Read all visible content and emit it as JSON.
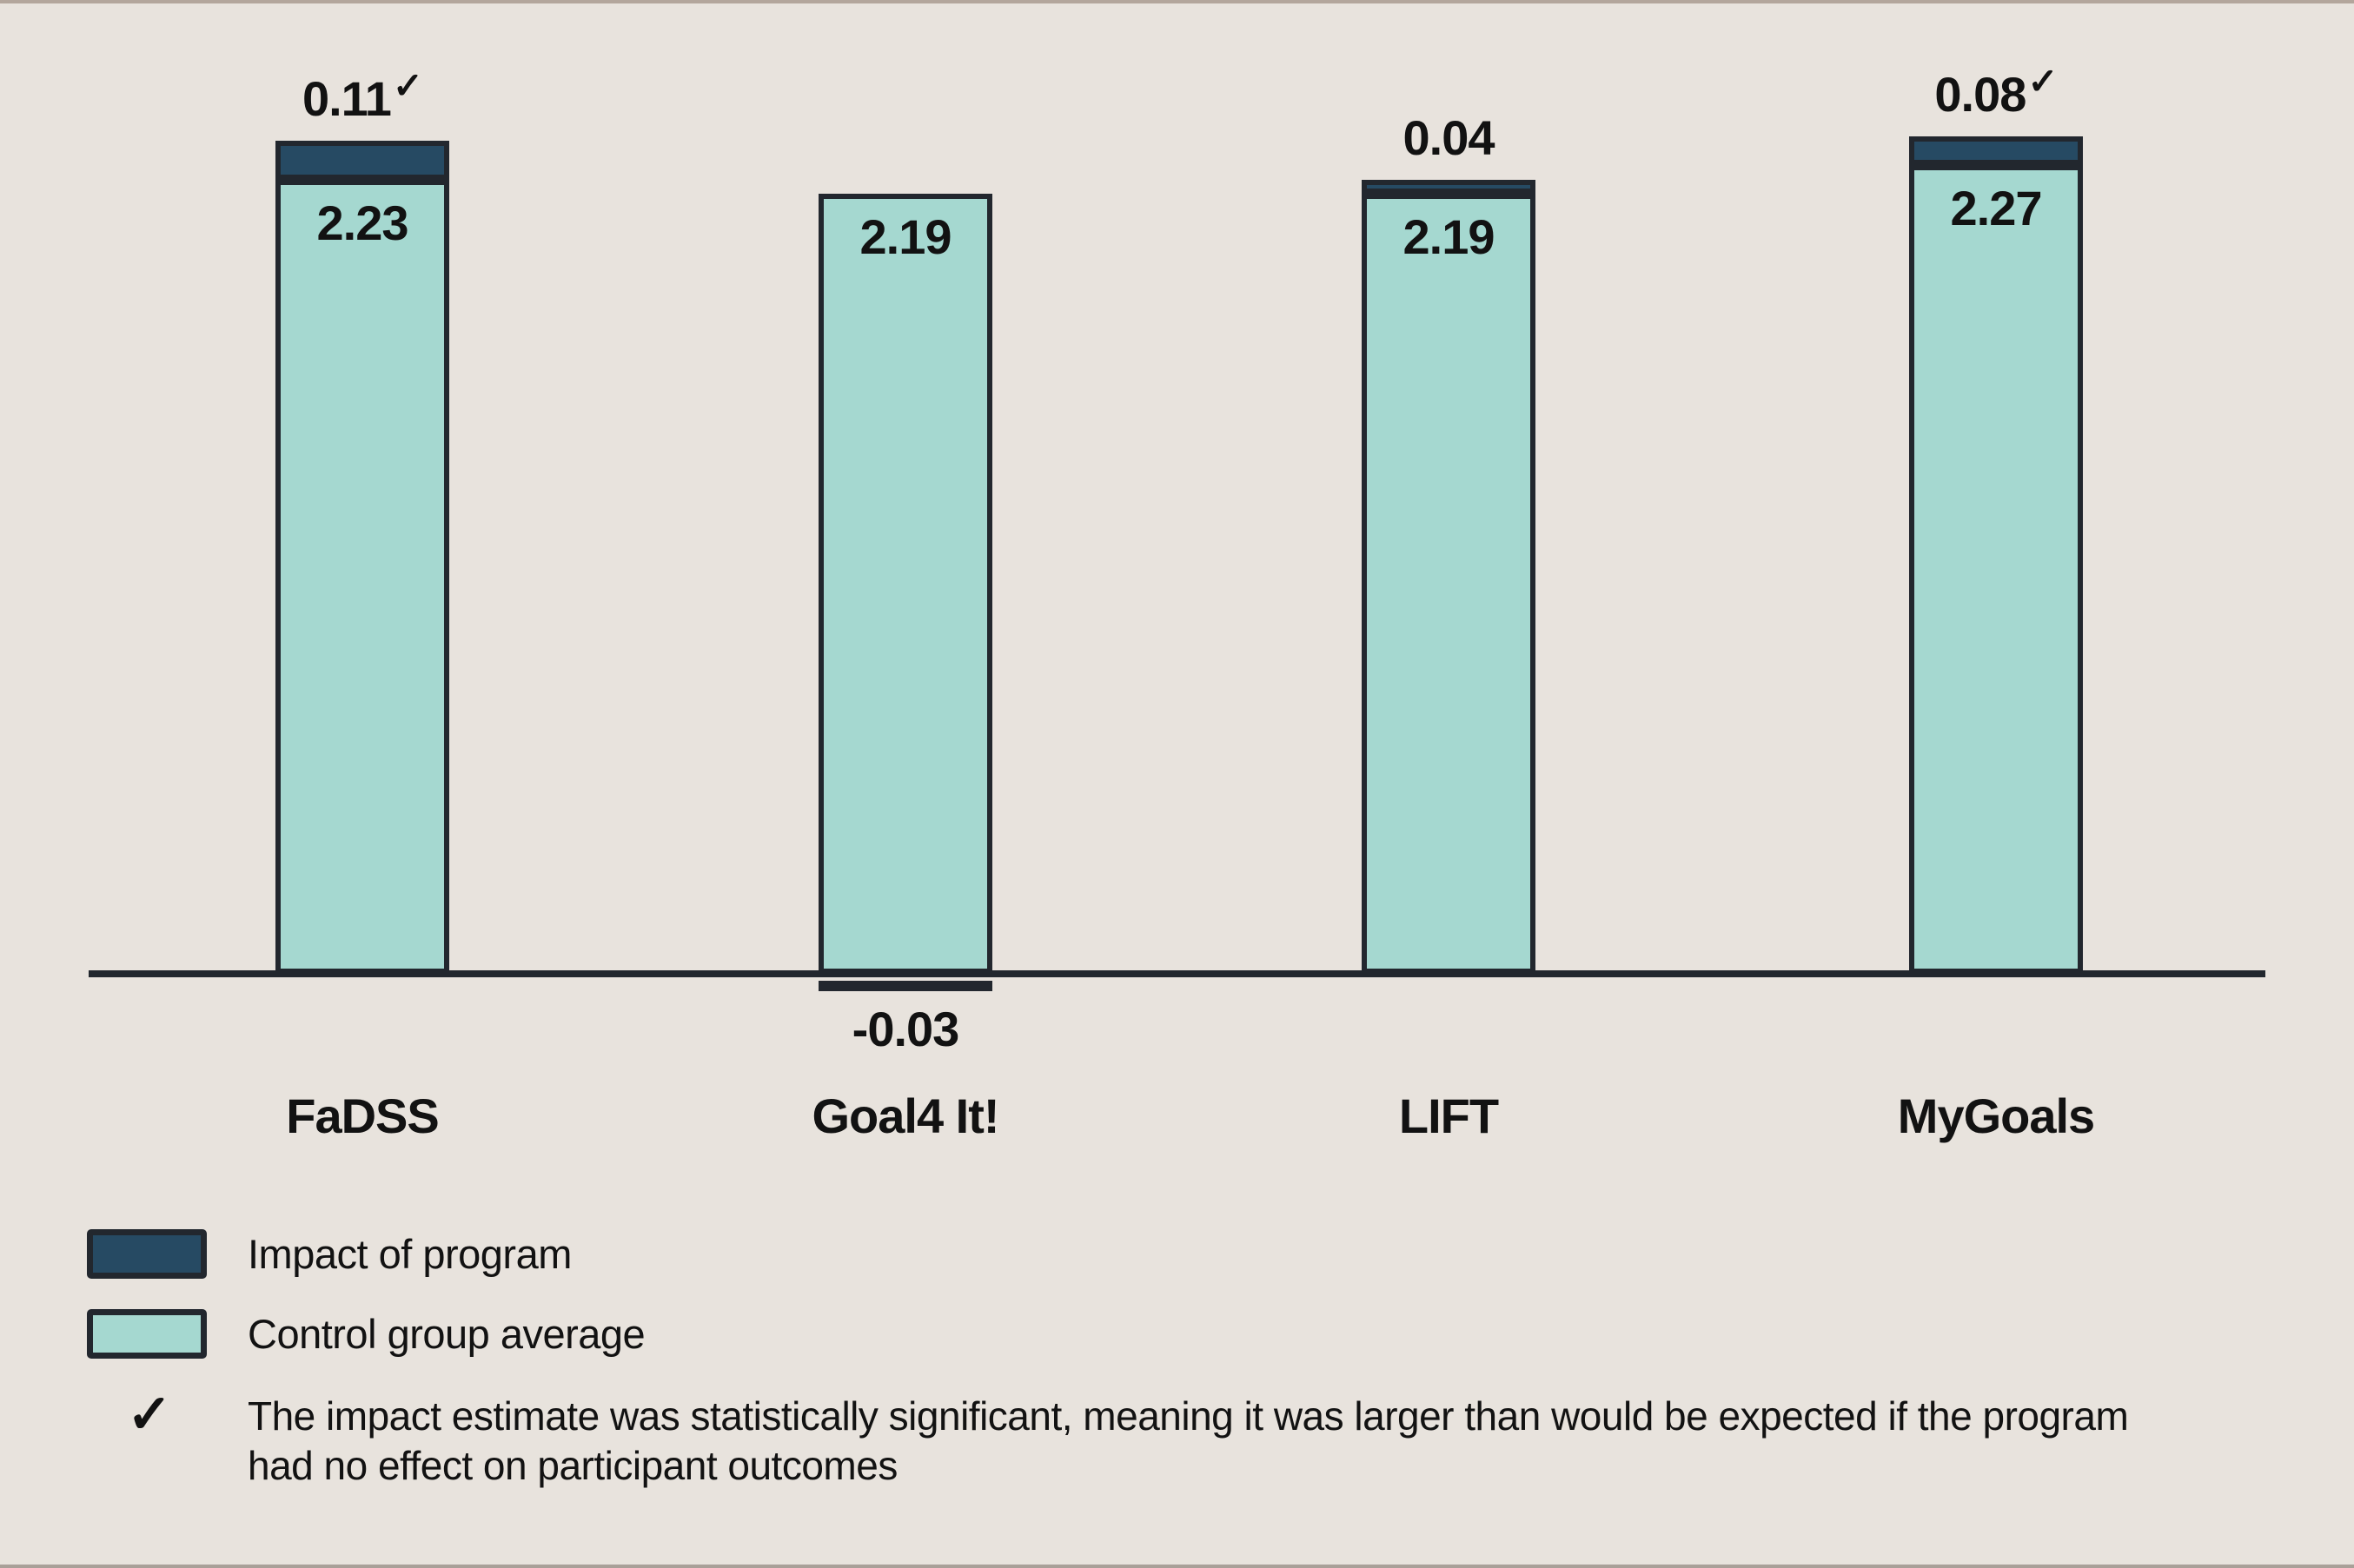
{
  "chart_data": {
    "type": "bar",
    "stacked": true,
    "categories": [
      "FaDSS",
      "Goal4 It!",
      "LIFT",
      "MyGoals"
    ],
    "series": [
      {
        "name": "Impact of program",
        "values": [
          0.11,
          -0.03,
          0.04,
          0.08
        ]
      },
      {
        "name": "Control group average",
        "values": [
          2.23,
          2.19,
          2.19,
          2.27
        ]
      }
    ],
    "programs": [
      {
        "name": "FaDSS",
        "control_label": "2.23",
        "impact_label": "0.11",
        "significant": true
      },
      {
        "name": "Goal4 It!",
        "control_label": "2.19",
        "impact_label": "-0.03",
        "significant": false
      },
      {
        "name": "LIFT",
        "control_label": "2.19",
        "impact_label": "0.04",
        "significant": false
      },
      {
        "name": "MyGoals",
        "control_label": "2.27",
        "impact_label": "0.08",
        "significant": true
      }
    ],
    "ylim": [
      -0.1,
      2.5
    ],
    "grid": false,
    "legend_position": "bottom-left",
    "title": "",
    "xlabel": "",
    "ylabel": ""
  },
  "legend": {
    "impact_label": "Impact of program",
    "control_label": "Control group average",
    "check_glyph": "✓",
    "significance_note": "The impact estimate was statistically significant, meaning it was larger than would be expected if the program had no effect on participant outcomes"
  },
  "colors": {
    "background": "#e8e3dd",
    "impact": "#264a63",
    "control": "#a5d8d0",
    "outline": "#22272e",
    "axis": "#22272e",
    "text": "#121212",
    "edge_strip": "#b3a69c"
  }
}
